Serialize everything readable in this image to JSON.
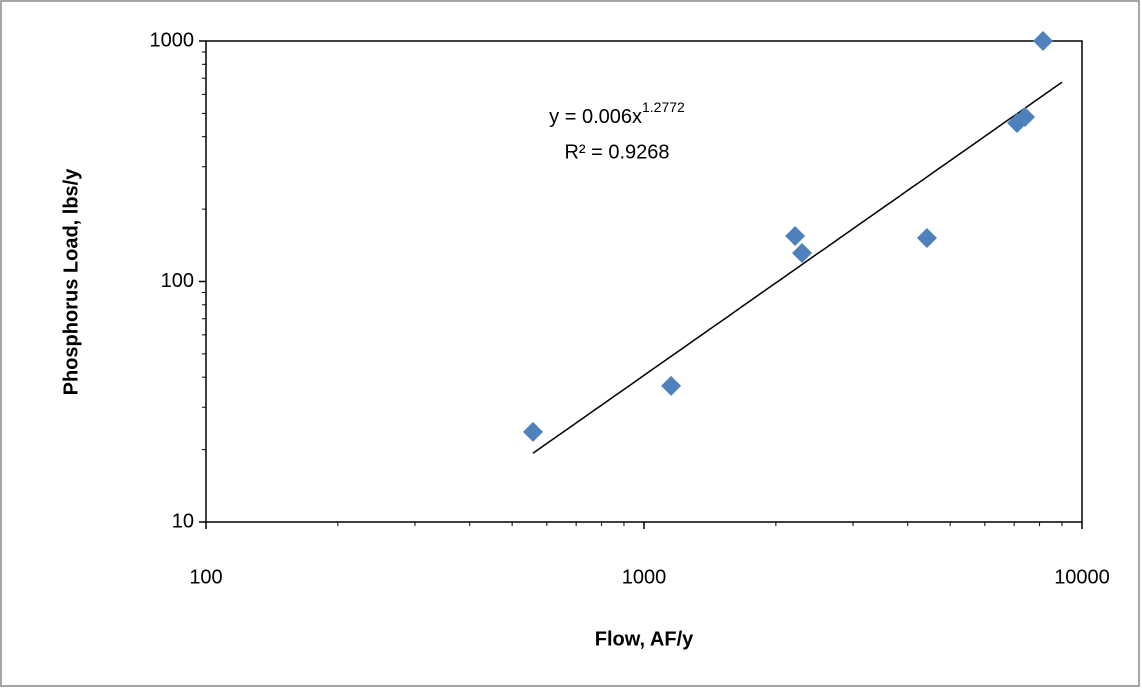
{
  "chart_data": {
    "type": "scatter",
    "x_label": "Flow, AF/y",
    "y_label": "Phosphorus Load, lbs/y",
    "x": [
      558,
      1153,
      2213,
      2295,
      4426,
      7108,
      7413,
      8147
    ],
    "values": [
      23.7,
      36.8,
      154.6,
      131.3,
      151.7,
      456,
      483,
      1000
    ],
    "color": "#4f81bd",
    "xlim": [
      100,
      10000
    ],
    "ylim": [
      10,
      1000
    ],
    "xticks": [
      100,
      1000,
      10000
    ],
    "yticks": [
      10,
      100,
      1000
    ],
    "xminorticks": [
      200,
      300,
      400,
      500,
      600,
      700,
      800,
      900,
      2000,
      3000,
      4000,
      5000,
      6000,
      7000,
      8000,
      9000
    ],
    "yminorticks": [
      20,
      30,
      40,
      50,
      60,
      70,
      80,
      90,
      200,
      300,
      400,
      500,
      600,
      700,
      800,
      900
    ],
    "log_x": true,
    "log_y": true,
    "trendline": {
      "equation": "y = 0.006x",
      "exponent": 1.2772,
      "coefficient": 0.006,
      "r2_label": "R² = 0.9268",
      "x_range": [
        558,
        9000
      ]
    }
  }
}
